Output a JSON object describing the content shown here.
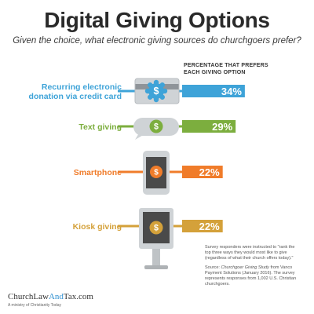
{
  "header": {
    "title": "Digital Giving Options",
    "subtitle": "Given the choice, what electronic giving sources do churchgoers prefer?"
  },
  "legend_label": "PERCENTAGE THAT PREFERS EACH GIVING OPTION",
  "chart_data": {
    "type": "bar",
    "categories": [
      "Recurring electronic donation via credit card",
      "Text giving",
      "Smartphone",
      "Kiosk giving"
    ],
    "category_lines": [
      [
        "Recurring electronic",
        "donation via credit card"
      ],
      [
        "Text giving"
      ],
      [
        "Smartphone"
      ],
      [
        "Kiosk giving"
      ]
    ],
    "values": [
      34,
      29,
      22,
      22
    ],
    "value_labels": [
      "34%",
      "29%",
      "22%",
      "22%"
    ],
    "unit": "%",
    "colors": [
      "#3ea3d8",
      "#7cae3e",
      "#f07c2a",
      "#d4a13a"
    ],
    "icons": [
      "credit-card-gear-icon",
      "speech-bubble-dollar-icon",
      "smartphone-dollar-icon",
      "kiosk-dollar-icon"
    ]
  },
  "notes": {
    "methodology": "Survey responders were instructed to \"rank the top three ways they would most like to give (regardless of what their church offers today).\"",
    "source_prefix": "Source: ",
    "source_title": "Churchgoer Giving Study",
    "source_rest": " from Vanco Payment Solutions (January 2016). The survey represents responses from 1,002 U.S. Christian churchgoers."
  },
  "footer": {
    "brand_church": "Church",
    "brand_law": "Law",
    "brand_and": "And",
    "brand_tax": "Tax.com",
    "brand_sub": "A ministry of Christianity Today"
  }
}
